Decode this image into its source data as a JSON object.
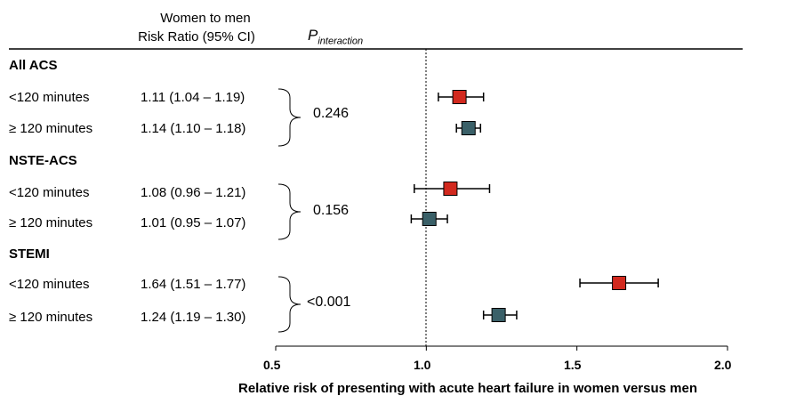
{
  "header": {
    "col_ratio_line1": "Women to men",
    "col_ratio_line2": "Risk Ratio (95% CI)",
    "col_p_main": "P",
    "col_p_sub": "interaction"
  },
  "chart_data": {
    "type": "forest",
    "xlabel": "Relative risk of presenting with acute heart failure in women versus men",
    "xlim": [
      0.5,
      2.0
    ],
    "xticks": [
      "0.5",
      "1.0",
      "1.5",
      "2.0"
    ],
    "reference_line": 1.0,
    "colors": {
      "lt120": "#d2291e",
      "ge120": "#3a6068"
    },
    "groups": [
      {
        "name": "All ACS",
        "p_interaction": "0.246",
        "rows": [
          {
            "label": "<120 minutes",
            "ci_text": "1.11 (1.04 – 1.19)",
            "estimate": 1.11,
            "lower": 1.04,
            "upper": 1.19,
            "color_key": "lt120"
          },
          {
            "label": "≥ 120 minutes",
            "ci_text": "1.14 (1.10 – 1.18)",
            "estimate": 1.14,
            "lower": 1.1,
            "upper": 1.18,
            "color_key": "ge120"
          }
        ]
      },
      {
        "name": "NSTE-ACS",
        "p_interaction": "0.156",
        "rows": [
          {
            "label": "<120 minutes",
            "ci_text": "1.08 (0.96 – 1.21)",
            "estimate": 1.08,
            "lower": 0.96,
            "upper": 1.21,
            "color_key": "lt120"
          },
          {
            "label": "≥ 120 minutes",
            "ci_text": "1.01 (0.95 – 1.07)",
            "estimate": 1.01,
            "lower": 0.95,
            "upper": 1.07,
            "color_key": "ge120"
          }
        ]
      },
      {
        "name": "STEMI",
        "p_interaction": "<0.001",
        "rows": [
          {
            "label": "<120 minutes",
            "ci_text": "1.64 (1.51 – 1.77)",
            "estimate": 1.64,
            "lower": 1.51,
            "upper": 1.77,
            "color_key": "lt120"
          },
          {
            "label": "≥ 120 minutes",
            "ci_text": "1.24 (1.19 – 1.30)",
            "estimate": 1.24,
            "lower": 1.19,
            "upper": 1.3,
            "color_key": "ge120"
          }
        ]
      }
    ]
  }
}
